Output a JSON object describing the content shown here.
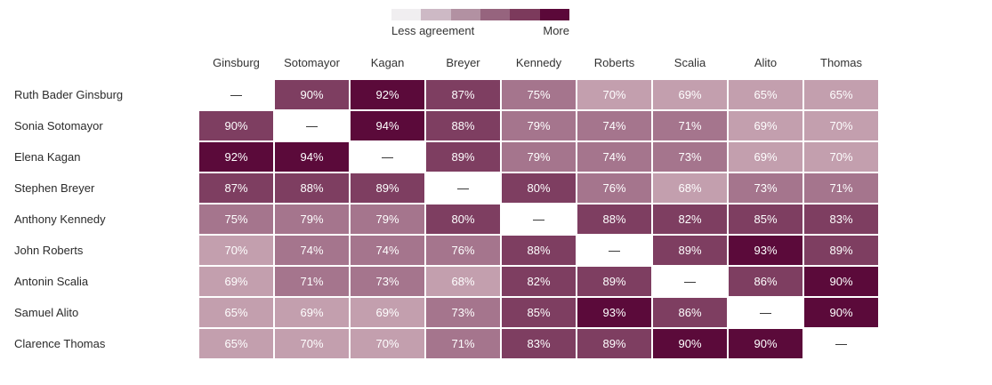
{
  "legend": {
    "left_label": "Less agreement",
    "right_label": "More",
    "colors": [
      "#f0eef0",
      "#cdb9c5",
      "#b291a2",
      "#96647e",
      "#7c3a5c",
      "#5b0839"
    ]
  },
  "shade_colors": {
    "none": "#ffffff",
    "light": "#c39fae",
    "medium": "#a5758d",
    "dark": "#7e3e61",
    "darkest": "#5b0a3a"
  },
  "chart_data": {
    "type": "heatmap",
    "title": "",
    "legend_left": "Less agreement",
    "legend_right": "More",
    "columns": [
      "Ginsburg",
      "Sotomayor",
      "Kagan",
      "Breyer",
      "Kennedy",
      "Roberts",
      "Scalia",
      "Alito",
      "Thomas"
    ],
    "row_labels": [
      "Ruth Bader Ginsburg",
      "Sonia Sotomayor",
      "Elena Kagan",
      "Stephen Breyer",
      "Anthony Kennedy",
      "John Roberts",
      "Antonin Scalia",
      "Samuel Alito",
      "Clarence Thomas"
    ],
    "values_percent": [
      [
        null,
        90,
        92,
        87,
        75,
        70,
        69,
        65,
        65
      ],
      [
        90,
        null,
        94,
        88,
        79,
        74,
        71,
        69,
        70
      ],
      [
        92,
        94,
        null,
        89,
        79,
        74,
        73,
        69,
        70
      ],
      [
        87,
        88,
        89,
        null,
        80,
        76,
        68,
        73,
        71
      ],
      [
        75,
        79,
        79,
        80,
        null,
        88,
        82,
        85,
        83
      ],
      [
        70,
        74,
        74,
        76,
        88,
        null,
        89,
        93,
        89
      ],
      [
        69,
        71,
        73,
        68,
        82,
        89,
        null,
        86,
        90
      ],
      [
        65,
        69,
        69,
        73,
        85,
        93,
        86,
        null,
        90
      ],
      [
        65,
        70,
        70,
        71,
        83,
        89,
        90,
        90,
        null
      ]
    ],
    "cell_shades": [
      [
        "none",
        "dark",
        "darkest",
        "dark",
        "medium",
        "light",
        "light",
        "light",
        "light"
      ],
      [
        "dark",
        "none",
        "darkest",
        "dark",
        "medium",
        "medium",
        "medium",
        "light",
        "light"
      ],
      [
        "darkest",
        "darkest",
        "none",
        "dark",
        "medium",
        "medium",
        "medium",
        "light",
        "light"
      ],
      [
        "dark",
        "dark",
        "dark",
        "none",
        "dark",
        "medium",
        "light",
        "medium",
        "medium"
      ],
      [
        "medium",
        "medium",
        "medium",
        "dark",
        "none",
        "dark",
        "dark",
        "dark",
        "dark"
      ],
      [
        "light",
        "medium",
        "medium",
        "medium",
        "dark",
        "none",
        "dark",
        "darkest",
        "dark"
      ],
      [
        "light",
        "medium",
        "medium",
        "light",
        "dark",
        "dark",
        "none",
        "dark",
        "darkest"
      ],
      [
        "light",
        "light",
        "light",
        "medium",
        "dark",
        "darkest",
        "dark",
        "none",
        "darkest"
      ],
      [
        "light",
        "light",
        "light",
        "medium",
        "dark",
        "dark",
        "darkest",
        "darkest",
        "none"
      ]
    ],
    "diagonal_marker": "—",
    "value_suffix": "%"
  }
}
